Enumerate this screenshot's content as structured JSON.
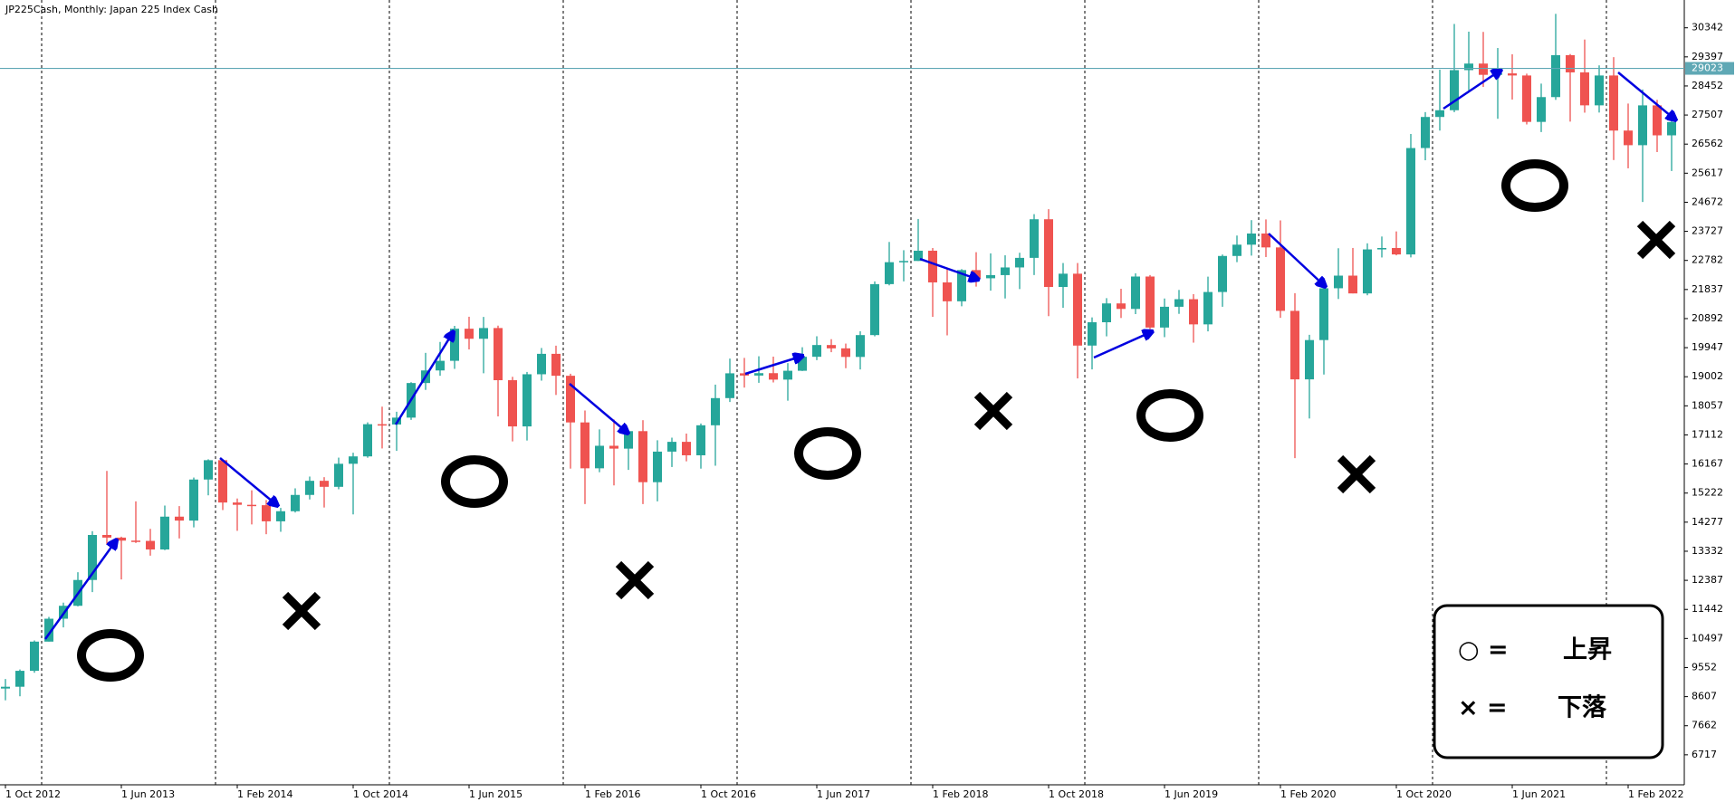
{
  "chart_data": {
    "type": "candlestick",
    "title": "JP225Cash, Monthly:  Japan 225 Index Cash",
    "categories": [
      "1 Oct 2012",
      null,
      null,
      null,
      null,
      null,
      null,
      null,
      "1 Jun 2013",
      null,
      null,
      null,
      null,
      null,
      null,
      null,
      "1 Feb 2014",
      null,
      null,
      null,
      null,
      null,
      null,
      null,
      "1 Oct 2014",
      null,
      null,
      null,
      null,
      null,
      null,
      null,
      "1 Jun 2015",
      null,
      null,
      null,
      null,
      null,
      null,
      null,
      "1 Feb 2016",
      null,
      null,
      null,
      null,
      null,
      null,
      null,
      "1 Oct 2016",
      null,
      null,
      null,
      null,
      null,
      null,
      null,
      "1 Jun 2017",
      null,
      null,
      null,
      null,
      null,
      null,
      null,
      "1 Feb 2018",
      null,
      null,
      null,
      null,
      null,
      null,
      null,
      "1 Oct 2018",
      null,
      null,
      null,
      null,
      null,
      null,
      null,
      "1 Jun 2019",
      null,
      null,
      null,
      null,
      null,
      null,
      null,
      "1 Feb 2020",
      null,
      null,
      null,
      null,
      null,
      null,
      null,
      "1 Oct 2020",
      null,
      null,
      null,
      null,
      null,
      null,
      null,
      "1 Jun 2021",
      null,
      null,
      null,
      null,
      null,
      null,
      null,
      "1 Feb 2022",
      null,
      null,
      null
    ],
    "open": [
      8870,
      8928,
      9446,
      10395,
      11139,
      11559,
      12398,
      13861,
      13775,
      13677,
      13668,
      13389,
      14456,
      14328,
      15662,
      16291,
      14915,
      14841,
      14828,
      14304,
      14632,
      15162,
      15621,
      15425,
      16174,
      16414,
      17460,
      17451,
      17674,
      18798,
      19207,
      19520,
      20563,
      20236,
      20585,
      18890,
      17388,
      19083,
      19747,
      19034,
      17518,
      16027,
      16759,
      16666,
      17235,
      15576,
      16569,
      16887,
      16450,
      17425,
      18308,
      19114,
      19041,
      19119,
      18909,
      19197,
      19651,
      20033,
      19925,
      19646,
      20356,
      22012,
      22725,
      22765,
      23098,
      22068,
      21454,
      22468,
      22202,
      22305,
      22554,
      22865,
      24120,
      21920,
      22351,
      20015,
      20773,
      21385,
      21206,
      22259,
      20601,
      21276,
      21522,
      20704,
      21756,
      22927,
      23294,
      23657,
      23205,
      21143,
      18917,
      20194,
      21878,
      22288,
      21710,
      23140,
      23185,
      22977,
      26434,
      27444,
      27663,
      28966,
      29179,
      28813,
      28860,
      28792,
      27284,
      28090,
      29453,
      28893,
      27822,
      28792,
      27002,
      26527,
      27821,
      26847
    ],
    "high": [
      9179,
      9489,
      10433,
      11198,
      11662,
      12650,
      13984,
      15942,
      13805,
      14953,
      14059,
      14817,
      14799,
      15727,
      16320,
      16300,
      15046,
      15312,
      14996,
      14740,
      15376,
      15759,
      15739,
      16374,
      16533,
      17520,
      18030,
      17865,
      18826,
      19778,
      20133,
      20655,
      20952,
      20946,
      20663,
      19000,
      19158,
      19937,
      20012,
      19100,
      17905,
      17291,
      17613,
      17251,
      17591,
      16938,
      17023,
      17156,
      17483,
      18746,
      19592,
      19615,
      19668,
      19656,
      19445,
      19961,
      20318,
      20223,
      20080,
      20481,
      22100,
      23382,
      23114,
      24129,
      23186,
      22502,
      22500,
      23050,
      23011,
      22949,
      23032,
      24286,
      24448,
      22698,
      22698,
      20931,
      21556,
      21860,
      22362,
      22307,
      21545,
      21823,
      21687,
      22255,
      22974,
      23591,
      24091,
      24115,
      24083,
      21719,
      20365,
      22062,
      23178,
      23187,
      23338,
      23559,
      23725,
      26890,
      27602,
      28979,
      30467,
      30216,
      30208,
      29685,
      29480,
      28852,
      28528,
      30795,
      29489,
      29960,
      29121,
      29388,
      27880,
      28338,
      28000,
      27458
    ],
    "low": [
      8488,
      8619,
      9383,
      10398,
      10857,
      11540,
      12004,
      13555,
      12415,
      13600,
      13188,
      13367,
      13748,
      14107,
      15149,
      14670,
      13995,
      14203,
      13885,
      13964,
      14591,
      15014,
      14753,
      15346,
      14529,
      16370,
      16672,
      16593,
      17600,
      18575,
      19034,
      19258,
      19890,
      19115,
      17714,
      16901,
      16930,
      18875,
      18410,
      16017,
      14865,
      15900,
      15471,
      15975,
      14864,
      14953,
      16069,
      16254,
      16016,
      16111,
      18181,
      18650,
      18805,
      18817,
      18224,
      19189,
      19542,
      19800,
      19280,
      19239,
      20315,
      21972,
      22102,
      22764,
      20950,
      20347,
      21292,
      21931,
      21800,
      21546,
      21851,
      22307,
      20971,
      21243,
      18948,
      19241,
      20315,
      20911,
      21038,
      20552,
      20289,
      21046,
      20110,
      20477,
      21276,
      22726,
      22938,
      22892,
      20916,
      16358,
      17646,
      19074,
      21529,
      21710,
      21650,
      22878,
      22948,
      22880,
      26037,
      27002,
      27600,
      28308,
      28419,
      27385,
      28010,
      27200,
      26954,
      28000,
      27293,
      27584,
      27588,
      26044,
      25775,
      24681,
      26304,
      25688
    ],
    "close": [
      8928,
      9446,
      10395,
      11139,
      11559,
      12398,
      13861,
      13775,
      13677,
      13668,
      13389,
      14456,
      14328,
      15662,
      16291,
      14915,
      14841,
      14828,
      14304,
      14632,
      15162,
      15621,
      15425,
      16174,
      16414,
      17460,
      17451,
      17674,
      18798,
      19207,
      19520,
      20563,
      20236,
      20585,
      18890,
      17388,
      19083,
      19747,
      19034,
      17518,
      16027,
      16759,
      16666,
      17235,
      15576,
      16569,
      16887,
      16450,
      17425,
      18308,
      19114,
      19041,
      19119,
      18909,
      19197,
      19651,
      20033,
      19925,
      19646,
      20356,
      22012,
      22725,
      22765,
      23098,
      22068,
      21454,
      22468,
      22202,
      22305,
      22554,
      22865,
      24120,
      21920,
      22351,
      20015,
      20773,
      21385,
      21206,
      22259,
      20601,
      21276,
      21522,
      20704,
      21756,
      22927,
      23294,
      23657,
      23205,
      21143,
      18917,
      20194,
      21878,
      22288,
      21710,
      23140,
      23185,
      22977,
      26434,
      27444,
      27663,
      28966,
      29179,
      28813,
      28860,
      28792,
      27284,
      28090,
      29453,
      28893,
      27822,
      28792,
      27002,
      26527,
      27821,
      26847,
      27279
    ],
    "up_color": "#26a69a",
    "down_color": "#ef5350",
    "ylim": [
      5742,
      31245
    ],
    "yticks": [
      6717,
      7662,
      8607,
      9552,
      10497,
      11442,
      12387,
      13332,
      14277,
      15222,
      16167,
      17112,
      18057,
      19002,
      19947,
      20892,
      21837,
      22782,
      23727,
      24672,
      25617,
      26562,
      27507,
      28452,
      29397,
      30342
    ],
    "current_price": 29023,
    "current_price_color": "#5fa8b5",
    "legend": [
      {
        "symbol": "○ =",
        "label": "上昇"
      },
      {
        "symbol": "× =",
        "label": "下落"
      }
    ]
  }
}
